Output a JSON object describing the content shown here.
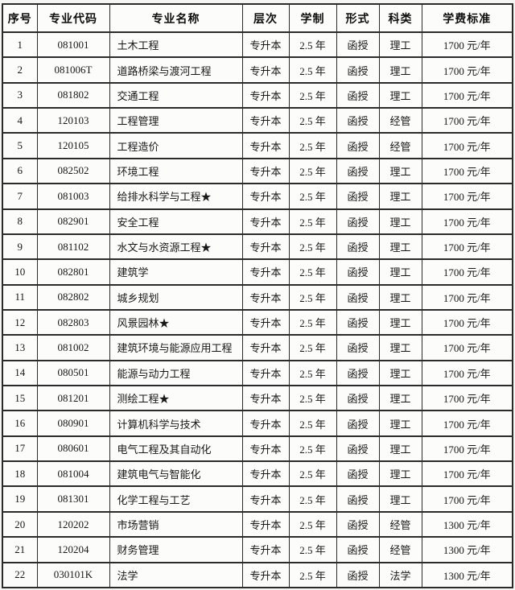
{
  "colors": {
    "border": "#2b2b2b",
    "text": "#181818",
    "cell_background": "#fcfcfb",
    "page_background": "#f5f5f3"
  },
  "table": {
    "headers": [
      "序号",
      "专业代码",
      "专业名称",
      "层次",
      "学制",
      "形式",
      "科类",
      "学费标准"
    ],
    "rows": [
      [
        "1",
        "081001",
        "土木工程",
        "专升本",
        "2.5 年",
        "函授",
        "理工",
        "1700 元/年"
      ],
      [
        "2",
        "081006T",
        "道路桥梁与渡河工程",
        "专升本",
        "2.5 年",
        "函授",
        "理工",
        "1700 元/年"
      ],
      [
        "3",
        "081802",
        "交通工程",
        "专升本",
        "2.5 年",
        "函授",
        "理工",
        "1700 元/年"
      ],
      [
        "4",
        "120103",
        "工程管理",
        "专升本",
        "2.5 年",
        "函授",
        "经管",
        "1700 元/年"
      ],
      [
        "5",
        "120105",
        "工程造价",
        "专升本",
        "2.5 年",
        "函授",
        "经管",
        "1700 元/年"
      ],
      [
        "6",
        "082502",
        "环境工程",
        "专升本",
        "2.5 年",
        "函授",
        "理工",
        "1700 元/年"
      ],
      [
        "7",
        "081003",
        "给排水科学与工程★",
        "专升本",
        "2.5 年",
        "函授",
        "理工",
        "1700 元/年"
      ],
      [
        "8",
        "082901",
        "安全工程",
        "专升本",
        "2.5 年",
        "函授",
        "理工",
        "1700 元/年"
      ],
      [
        "9",
        "081102",
        "水文与水资源工程★",
        "专升本",
        "2.5 年",
        "函授",
        "理工",
        "1700 元/年"
      ],
      [
        "10",
        "082801",
        "建筑学",
        "专升本",
        "2.5 年",
        "函授",
        "理工",
        "1700 元/年"
      ],
      [
        "11",
        "082802",
        "城乡规划",
        "专升本",
        "2.5 年",
        "函授",
        "理工",
        "1700 元/年"
      ],
      [
        "12",
        "082803",
        "风景园林★",
        "专升本",
        "2.5 年",
        "函授",
        "理工",
        "1700 元/年"
      ],
      [
        "13",
        "081002",
        "建筑环境与能源应用工程",
        "专升本",
        "2.5 年",
        "函授",
        "理工",
        "1700 元/年"
      ],
      [
        "14",
        "080501",
        "能源与动力工程",
        "专升本",
        "2.5 年",
        "函授",
        "理工",
        "1700 元/年"
      ],
      [
        "15",
        "081201",
        "测绘工程★",
        "专升本",
        "2.5 年",
        "函授",
        "理工",
        "1700 元/年"
      ],
      [
        "16",
        "080901",
        "计算机科学与技术",
        "专升本",
        "2.5 年",
        "函授",
        "理工",
        "1700 元/年"
      ],
      [
        "17",
        "080601",
        "电气工程及其自动化",
        "专升本",
        "2.5 年",
        "函授",
        "理工",
        "1700 元/年"
      ],
      [
        "18",
        "081004",
        "建筑电气与智能化",
        "专升本",
        "2.5 年",
        "函授",
        "理工",
        "1700 元/年"
      ],
      [
        "19",
        "081301",
        "化学工程与工艺",
        "专升本",
        "2.5 年",
        "函授",
        "理工",
        "1700 元/年"
      ],
      [
        "20",
        "120202",
        "市场营销",
        "专升本",
        "2.5 年",
        "函授",
        "经管",
        "1300 元/年"
      ],
      [
        "21",
        "120204",
        "财务管理",
        "专升本",
        "2.5 年",
        "函授",
        "经管",
        "1300 元/年"
      ],
      [
        "22",
        "030101K",
        "法学",
        "专升本",
        "2.5 年",
        "函授",
        "法学",
        "1300 元/年"
      ]
    ]
  }
}
